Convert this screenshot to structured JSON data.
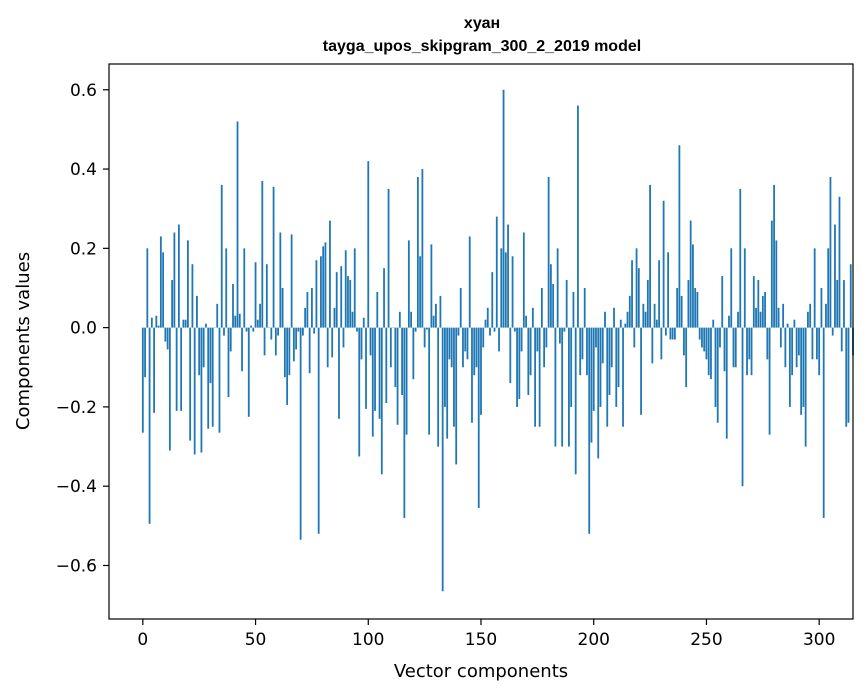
{
  "chart_data": {
    "type": "bar",
    "title_lines": [
      "хуан",
      "tayga_upos_skipgram_300_2_2019 model"
    ],
    "xlabel": "Vector components",
    "ylabel": "Components values",
    "xlim": [
      -15,
      315
    ],
    "ylim": [
      -0.735,
      0.665
    ],
    "xticks": [
      0,
      50,
      100,
      150,
      200,
      250,
      300
    ],
    "xtick_labels": [
      "0",
      "50",
      "100",
      "150",
      "200",
      "250",
      "300"
    ],
    "yticks": [
      0.6,
      0.4,
      0.2,
      0.0,
      -0.2,
      -0.4,
      -0.6
    ],
    "ytick_labels": [
      "0.6",
      "0.4",
      "0.2",
      "0.0",
      "−0.2",
      "−0.4",
      "−0.6"
    ],
    "bar_color": "#1f77b4",
    "grid": false,
    "values": [
      -0.265,
      -0.125,
      0.2,
      -0.495,
      0.025,
      -0.215,
      0.03,
      0.005,
      0.23,
      0.19,
      -0.035,
      -0.055,
      -0.31,
      0.12,
      0.24,
      -0.21,
      0.26,
      -0.21,
      0.02,
      0.02,
      0.22,
      -0.285,
      0.16,
      -0.32,
      0.08,
      -0.12,
      -0.315,
      -0.1,
      0.01,
      -0.255,
      -0.14,
      -0.25,
      0.0,
      0.06,
      -0.265,
      0.36,
      -0.02,
      0.2,
      -0.175,
      -0.06,
      0.11,
      0.03,
      0.52,
      0.035,
      -0.11,
      0.2,
      -0.01,
      -0.225,
      0.005,
      -0.01,
      0.165,
      0.02,
      0.06,
      0.37,
      -0.07,
      0.16,
      0.0,
      -0.03,
      0.355,
      -0.07,
      -0.02,
      0.24,
      0.1,
      -0.125,
      -0.195,
      -0.12,
      0.235,
      -0.085,
      -0.055,
      -0.01,
      -0.535,
      -0.02,
      0.05,
      0.09,
      -0.115,
      0.1,
      -0.015,
      0.17,
      -0.52,
      0.18,
      0.205,
      0.215,
      -0.1,
      0.27,
      -0.075,
      0.05,
      0.14,
      -0.23,
      0.155,
      -0.05,
      0.195,
      0.13,
      0.12,
      0.04,
      0.2,
      -0.01,
      -0.325,
      -0.08,
      0.025,
      -0.205,
      0.42,
      -0.07,
      -0.275,
      -0.21,
      0.09,
      -0.23,
      -0.37,
      0.15,
      -0.19,
      0.35,
      -0.1,
      0.0,
      -0.15,
      -0.245,
      0.04,
      -0.17,
      -0.48,
      -0.27,
      0.22,
      0.04,
      -0.13,
      -0.01,
      0.38,
      0.18,
      0.4,
      -0.05,
      -0.005,
      -0.27,
      0.21,
      0.03,
      0.06,
      -0.3,
      0.08,
      -0.665,
      -0.2,
      -0.28,
      -0.08,
      -0.1,
      -0.25,
      -0.345,
      -0.02,
      0.1,
      -0.1,
      -0.06,
      -0.08,
      0.23,
      -0.24,
      -0.12,
      -0.1,
      -0.455,
      -0.22,
      -0.05,
      0.02,
      0.05,
      -0.02,
      0.14,
      -0.01,
      0.28,
      -0.06,
      0.2,
      0.6,
      0.19,
      0.26,
      -0.14,
      0.18,
      -0.01,
      -0.2,
      -0.18,
      -0.06,
      0.24,
      0.03,
      -0.17,
      -0.12,
      0.05,
      -0.25,
      -0.06,
      -0.25,
      0.1,
      -0.1,
      -0.05,
      0.38,
      0.16,
      0.11,
      -0.3,
      0.2,
      -0.04,
      -0.3,
      -0.01,
      0.12,
      -0.3,
      -0.2,
      0.09,
      -0.37,
      0.56,
      -0.12,
      -0.08,
      0.1,
      -0.12,
      -0.52,
      -0.29,
      -0.21,
      -0.05,
      -0.33,
      -0.2,
      -0.09,
      0.04,
      -0.25,
      -0.17,
      -0.1,
      0.05,
      -0.2,
      -0.15,
      0.02,
      -0.25,
      0.01,
      0.04,
      0.08,
      0.17,
      -0.05,
      0.2,
      0.15,
      -0.22,
      0.06,
      0.04,
      0.12,
      0.36,
      -0.09,
      0.06,
      0.02,
      0.17,
      -0.08,
      0.32,
      -0.02,
      0.19,
      -0.03,
      -0.03,
      -0.03,
      0.1,
      0.46,
      0.08,
      -0.07,
      -0.15,
      0.12,
      0.27,
      0.21,
      0.1,
      0.09,
      -0.03,
      -0.05,
      -0.06,
      -0.08,
      -0.12,
      -0.13,
      0.02,
      -0.2,
      -0.24,
      -0.05,
      0.13,
      -0.11,
      -0.28,
      0.03,
      0.2,
      -0.1,
      -0.1,
      0.04,
      0.35,
      -0.4,
      0.2,
      -0.12,
      -0.08,
      -0.12,
      0.13,
      0.05,
      0.12,
      0.04,
      0.08,
      0.09,
      -0.08,
      -0.27,
      0.27,
      0.36,
      0.22,
      0.05,
      -0.05,
      0.06,
      -0.1,
      0.01,
      -0.2,
      -0.12,
      0.02,
      -0.1,
      -0.07,
      -0.22,
      -0.2,
      -0.3,
      0.04,
      0.06,
      -0.08,
      0.2,
      -0.08,
      -0.12,
      0.1,
      -0.48,
      0.06,
      0.2,
      0.38,
      -0.02,
      0.26,
      0.12,
      0.33,
      -0.06,
      0.12,
      -0.25,
      -0.24,
      0.16,
      -0.07
    ]
  }
}
